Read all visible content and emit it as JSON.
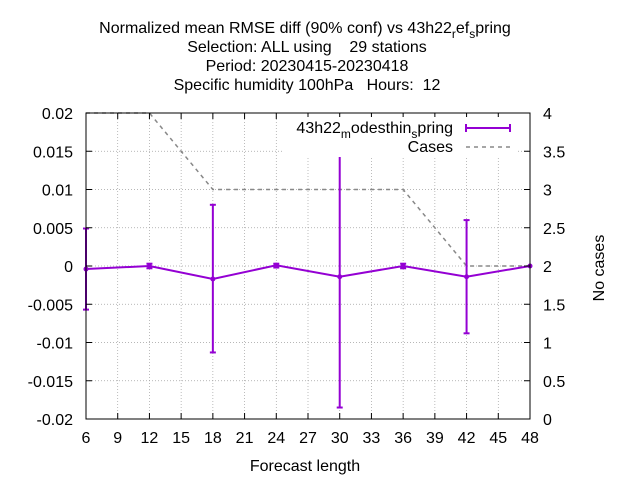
{
  "chart_data": {
    "type": "line",
    "title_lines": [
      "Normalized mean RMSE diff (90% conf) vs 43h22",
      "Selection: ALL using    29 stations",
      "Period: 20230415-20230418",
      "Specific humidity 100hPa   Hours:  12"
    ],
    "title_ref_sub1": "r",
    "title_ref_mid": "ef",
    "title_ref_sub2": "s",
    "title_ref_end": "pring",
    "xlabel": "Forecast length",
    "ylabel_right": "No cases",
    "x_ticks": [
      "6",
      "9",
      "12",
      "15",
      "18",
      "21",
      "24",
      "27",
      "30",
      "33",
      "36",
      "39",
      "42",
      "45",
      "48"
    ],
    "y_ticks": [
      "0.02",
      "0.015",
      "0.01",
      "0.005",
      "0",
      "-0.005",
      "-0.01",
      "-0.015",
      "-0.02"
    ],
    "y2_ticks": [
      "4",
      "3.5",
      "3",
      "2.5",
      "2",
      "1.5",
      "1",
      "0.5",
      "0"
    ],
    "xlim": [
      6,
      48
    ],
    "ylim": [
      -0.02,
      0.02
    ],
    "y2lim": [
      0,
      4
    ],
    "grid": true,
    "legend_position": "top-right",
    "series": [
      {
        "name_main": "43h22",
        "name_sub1": "m",
        "name_mid": "odesthin",
        "name_sub2": "s",
        "name_end": "pring",
        "color": "#9400d3",
        "style": "solid line with error bars",
        "x": [
          6,
          12,
          18,
          24,
          30,
          36,
          42,
          48
        ],
        "y": [
          -0.0004,
          0.0,
          -0.0017,
          0.0001,
          -0.0014,
          0.0,
          -0.0014,
          0.0
        ],
        "err_low": [
          -0.0057,
          -0.0003,
          -0.0113,
          -0.0002,
          -0.0185,
          -0.0003,
          -0.0088,
          null
        ],
        "err_high": [
          0.0049,
          0.0003,
          0.008,
          0.0003,
          0.0157,
          0.0003,
          0.006,
          null
        ]
      },
      {
        "name": "Cases",
        "color": "#888888",
        "style": "dashed",
        "axis": "right",
        "x": [
          6,
          12,
          18,
          24,
          30,
          36,
          42,
          48
        ],
        "y": [
          4,
          4,
          3,
          3,
          3,
          3,
          2,
          2
        ]
      }
    ]
  }
}
